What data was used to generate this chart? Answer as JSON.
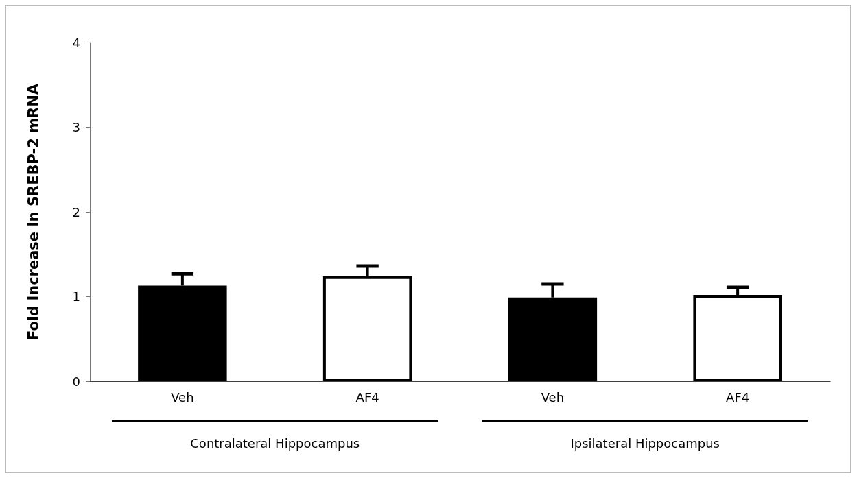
{
  "chart_data": {
    "type": "bar",
    "ylabel": "Fold Increase in SREBP-2 mRNA",
    "categories": [
      "Veh",
      "AF4",
      "Veh",
      "AF4"
    ],
    "values": [
      1.13,
      1.24,
      0.99,
      1.02
    ],
    "colors": [
      "#000000",
      "#ffffff",
      "#000000",
      "#ffffff"
    ],
    "errors": [
      [
        1.13,
        1.27
      ],
      [
        1.24,
        1.36
      ],
      [
        0.99,
        1.15
      ],
      [
        1.02,
        1.11
      ]
    ],
    "ylim": [
      0,
      4
    ],
    "yticks": [
      0,
      1,
      2,
      3,
      4
    ],
    "grid": false,
    "annotations": [
      "Contralateral Hippocampus",
      "Ipsilateral Hippocampus"
    ]
  }
}
